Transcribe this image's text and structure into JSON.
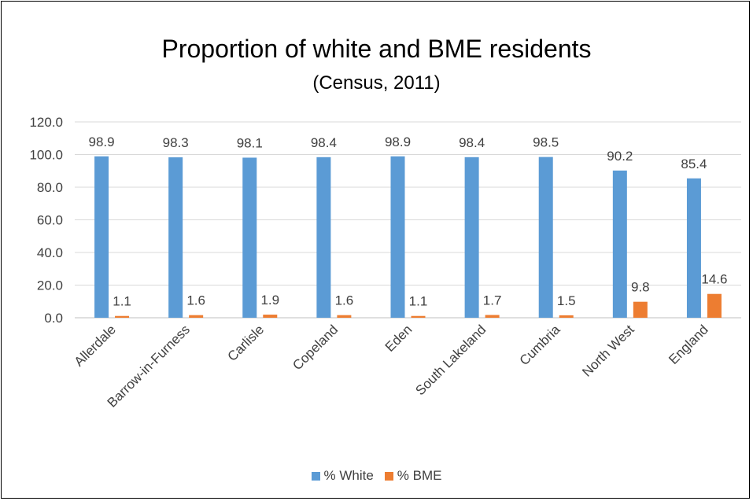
{
  "chart_data": {
    "type": "bar",
    "title": "Proportion of white and BME residents",
    "subtitle": "(Census, 2011)",
    "categories": [
      "Allerdale",
      "Barrow-in-Furness",
      "Carlisle",
      "Copeland",
      "Eden",
      "South Lakeland",
      "Cumbria",
      "North West",
      "England"
    ],
    "series": [
      {
        "name": "% White",
        "color": "#5b9bd5",
        "values": [
          98.9,
          98.3,
          98.1,
          98.4,
          98.9,
          98.4,
          98.5,
          90.2,
          85.4
        ]
      },
      {
        "name": "% BME",
        "color": "#ed7d31",
        "values": [
          1.1,
          1.6,
          1.9,
          1.6,
          1.1,
          1.7,
          1.5,
          9.8,
          14.6
        ]
      }
    ],
    "ylim": [
      0,
      120
    ],
    "yticks": [
      "0.0",
      "20.0",
      "40.0",
      "60.0",
      "80.0",
      "100.0",
      "120.0"
    ],
    "grid": true,
    "legend_position": "bottom"
  }
}
